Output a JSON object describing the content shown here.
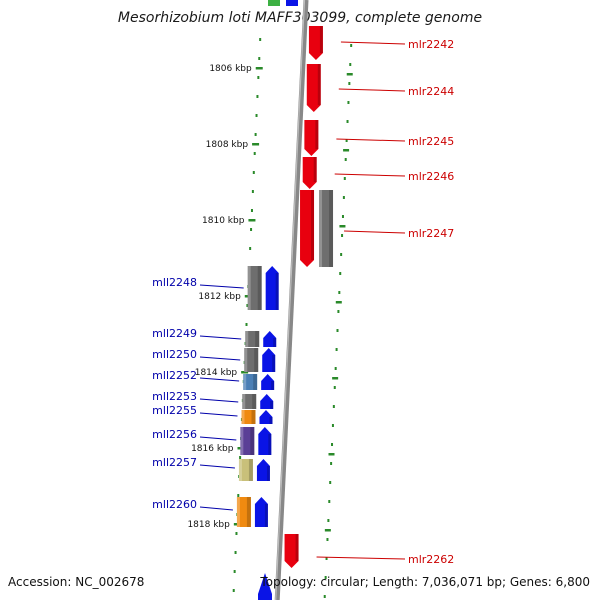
{
  "title": "Mesorhizobium loti MAFF303099, complete genome",
  "footer": {
    "accession": "Accession: NC_002678",
    "summary": "Topology: circular; Length: 7,036,071 bp; Genes: 6,800"
  },
  "scale": {
    "ticks": [
      "1806 kbp",
      "1808 kbp",
      "1810 kbp",
      "1812 kbp",
      "1814 kbp",
      "1816 kbp",
      "1818 kbp"
    ]
  },
  "colors": {
    "forward_label": "#cc0000",
    "reverse_label": "#0000aa",
    "forward_arrow": "#e8000f",
    "reverse_arrow": "#0a14e6",
    "grey_block": "#6e6e6e",
    "axis": "#888888",
    "dots": "#2a8a2a"
  },
  "forward_genes": [
    {
      "label": "mlr2242",
      "block_color": null
    },
    {
      "label": "mlr2244",
      "block_color": null
    },
    {
      "label": "mlr2245",
      "block_color": null
    },
    {
      "label": "mlr2246",
      "block_color": null
    },
    {
      "label": "mlr2247",
      "block_color": "#6e6e6e"
    },
    {
      "label": "mlr2262",
      "block_color": null
    }
  ],
  "reverse_genes": [
    {
      "label": "mll2248",
      "block_color": "#6e6e6e"
    },
    {
      "label": "mll2249",
      "block_color": "#6e6e6e"
    },
    {
      "label": "mll2250",
      "block_color": "#6e6e6e"
    },
    {
      "label": "mll2252",
      "block_color": "#4a7fb5"
    },
    {
      "label": "mll2253",
      "block_color": "#6e6e6e"
    },
    {
      "label": "mll2255",
      "block_color": "#f08a10"
    },
    {
      "label": "mll2256",
      "block_color": "#5a3f96"
    },
    {
      "label": "mll2257",
      "block_color": "#c9c07a"
    },
    {
      "label": "mll2260",
      "block_color": "#f08a10"
    }
  ]
}
